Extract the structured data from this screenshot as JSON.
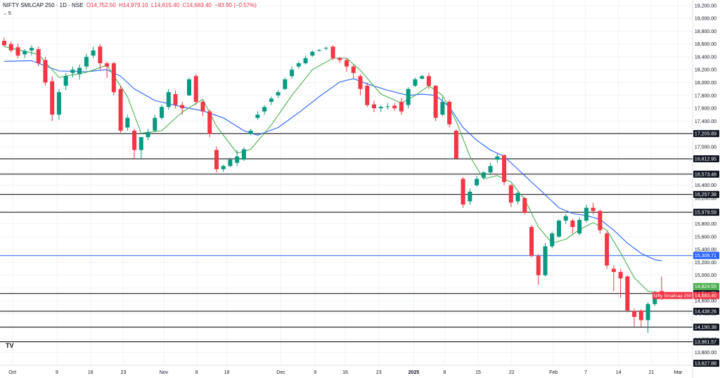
{
  "header": {
    "symbol": "NIFTY SMLCAP 250 · 1D · NSE",
    "o_label": "O",
    "o_value": "14,752.50",
    "h_label": "H",
    "h_value": "14,979.10",
    "l_label": "L",
    "l_value": "14,615.40",
    "c_label": "C",
    "c_value": "14,683.40",
    "change": "−83.90 (−0.57%)",
    "indicator": "5"
  },
  "logo_text": "TV",
  "colors": {
    "up": "#089981",
    "down": "#f23645",
    "ema_fast": "#4caf50",
    "ema_slow": "#2962ff",
    "level": "#000000",
    "blue_level": "#2962ff"
  },
  "chart_data": {
    "type": "candlestick",
    "title": "",
    "xlabel": "",
    "ylabel": "",
    "ylim": [
      13530,
      19220
    ],
    "y_ticks": [
      13800,
      14000,
      14200,
      14400,
      14600,
      14800,
      15000,
      15200,
      15400,
      15600,
      15800,
      16000,
      16200,
      16400,
      16600,
      16800,
      17000,
      17200,
      17400,
      17600,
      17800,
      18000,
      18200,
      18400,
      18600,
      18800,
      19000,
      19200
    ],
    "x_ticks": [
      "Oct",
      "9",
      "16",
      "23",
      "Nov",
      "8",
      "18",
      "Dec",
      "9",
      "16",
      "23",
      "2025",
      "8",
      "15",
      "22",
      "Feb",
      "7",
      "14",
      "21",
      "Mar"
    ],
    "candles": [
      {
        "o": 18650,
        "h": 18700,
        "l": 18560,
        "c": 18580
      },
      {
        "o": 18600,
        "h": 18640,
        "l": 18470,
        "c": 18500
      },
      {
        "o": 18550,
        "h": 18610,
        "l": 18380,
        "c": 18420
      },
      {
        "o": 18440,
        "h": 18520,
        "l": 18380,
        "c": 18490
      },
      {
        "o": 18500,
        "h": 18580,
        "l": 18420,
        "c": 18540
      },
      {
        "o": 18520,
        "h": 18560,
        "l": 18250,
        "c": 18300
      },
      {
        "o": 18350,
        "h": 18400,
        "l": 17950,
        "c": 18000
      },
      {
        "o": 18020,
        "h": 18100,
        "l": 17400,
        "c": 17500
      },
      {
        "o": 17500,
        "h": 17900,
        "l": 17420,
        "c": 17850
      },
      {
        "o": 17950,
        "h": 18150,
        "l": 17880,
        "c": 18100
      },
      {
        "o": 18150,
        "h": 18250,
        "l": 18080,
        "c": 18200
      },
      {
        "o": 18130,
        "h": 18280,
        "l": 18050,
        "c": 18230
      },
      {
        "o": 18250,
        "h": 18450,
        "l": 18200,
        "c": 18400
      },
      {
        "o": 18420,
        "h": 18560,
        "l": 18380,
        "c": 18500
      },
      {
        "o": 18560,
        "h": 18600,
        "l": 18200,
        "c": 18300
      },
      {
        "o": 18300,
        "h": 18330,
        "l": 18070,
        "c": 18250
      },
      {
        "o": 18300,
        "h": 18320,
        "l": 17800,
        "c": 17850
      },
      {
        "o": 17900,
        "h": 17950,
        "l": 17220,
        "c": 17250
      },
      {
        "o": 17300,
        "h": 17500,
        "l": 17250,
        "c": 17450
      },
      {
        "o": 17250,
        "h": 17280,
        "l": 16820,
        "c": 16950
      },
      {
        "o": 16950,
        "h": 17100,
        "l": 16820,
        "c": 17150
      },
      {
        "o": 17150,
        "h": 17280,
        "l": 17100,
        "c": 17230
      },
      {
        "o": 17250,
        "h": 17500,
        "l": 17230,
        "c": 17450
      },
      {
        "o": 17450,
        "h": 17650,
        "l": 17420,
        "c": 17620
      },
      {
        "o": 17620,
        "h": 17900,
        "l": 17580,
        "c": 17850
      },
      {
        "o": 17820,
        "h": 17880,
        "l": 17600,
        "c": 17650
      },
      {
        "o": 17650,
        "h": 17700,
        "l": 17500,
        "c": 17600
      },
      {
        "o": 17800,
        "h": 18080,
        "l": 17790,
        "c": 18050
      },
      {
        "o": 18100,
        "h": 18130,
        "l": 17650,
        "c": 17700
      },
      {
        "o": 17700,
        "h": 17720,
        "l": 17480,
        "c": 17550
      },
      {
        "o": 17550,
        "h": 17580,
        "l": 17150,
        "c": 17200
      },
      {
        "o": 16950,
        "h": 17000,
        "l": 16600,
        "c": 16650
      },
      {
        "o": 16650,
        "h": 16720,
        "l": 16610,
        "c": 16700
      },
      {
        "o": 16700,
        "h": 16830,
        "l": 16680,
        "c": 16800
      },
      {
        "o": 16750,
        "h": 16950,
        "l": 16700,
        "c": 16850
      },
      {
        "o": 16800,
        "h": 16990,
        "l": 16780,
        "c": 16960
      },
      {
        "o": 17200,
        "h": 17280,
        "l": 17180,
        "c": 17250
      },
      {
        "o": 17450,
        "h": 17550,
        "l": 17420,
        "c": 17500
      },
      {
        "o": 17550,
        "h": 17650,
        "l": 17500,
        "c": 17620
      },
      {
        "o": 17700,
        "h": 17780,
        "l": 17650,
        "c": 17750
      },
      {
        "o": 17800,
        "h": 17880,
        "l": 17760,
        "c": 17850
      },
      {
        "o": 17900,
        "h": 18080,
        "l": 17880,
        "c": 18050
      },
      {
        "o": 18100,
        "h": 18250,
        "l": 18060,
        "c": 18200
      },
      {
        "o": 18250,
        "h": 18330,
        "l": 18220,
        "c": 18300
      },
      {
        "o": 18300,
        "h": 18420,
        "l": 18280,
        "c": 18380
      },
      {
        "o": 18420,
        "h": 18500,
        "l": 18400,
        "c": 18480
      },
      {
        "o": 18500,
        "h": 18520,
        "l": 18480,
        "c": 18505
      },
      {
        "o": 18530,
        "h": 18560,
        "l": 18500,
        "c": 18540
      },
      {
        "o": 18560,
        "h": 18580,
        "l": 18350,
        "c": 18380
      },
      {
        "o": 18380,
        "h": 18400,
        "l": 18300,
        "c": 18350
      },
      {
        "o": 18350,
        "h": 18380,
        "l": 18170,
        "c": 18250
      },
      {
        "o": 18250,
        "h": 18280,
        "l": 18060,
        "c": 18150
      },
      {
        "o": 18100,
        "h": 18130,
        "l": 17800,
        "c": 17900
      },
      {
        "o": 17950,
        "h": 18000,
        "l": 17620,
        "c": 17650
      },
      {
        "o": 17660,
        "h": 17720,
        "l": 17540,
        "c": 17600
      },
      {
        "o": 17600,
        "h": 17650,
        "l": 17540,
        "c": 17620
      },
      {
        "o": 17620,
        "h": 17680,
        "l": 17580,
        "c": 17630
      },
      {
        "o": 17640,
        "h": 17680,
        "l": 17560,
        "c": 17600
      },
      {
        "o": 17700,
        "h": 17760,
        "l": 17500,
        "c": 17550
      },
      {
        "o": 17650,
        "h": 17930,
        "l": 17600,
        "c": 17900
      },
      {
        "o": 17950,
        "h": 18080,
        "l": 17930,
        "c": 18050
      },
      {
        "o": 18060,
        "h": 18120,
        "l": 18050,
        "c": 18100
      },
      {
        "o": 18100,
        "h": 18150,
        "l": 17900,
        "c": 17950
      },
      {
        "o": 17950,
        "h": 17960,
        "l": 17400,
        "c": 17450
      },
      {
        "o": 17500,
        "h": 17780,
        "l": 17480,
        "c": 17700
      },
      {
        "o": 17700,
        "h": 17730,
        "l": 17300,
        "c": 17350
      },
      {
        "o": 17250,
        "h": 17270,
        "l": 16800,
        "c": 16820
      },
      {
        "o": 16500,
        "h": 16530,
        "l": 16050,
        "c": 16100
      },
      {
        "o": 16150,
        "h": 16350,
        "l": 16100,
        "c": 16300
      },
      {
        "o": 16400,
        "h": 16550,
        "l": 16380,
        "c": 16500
      },
      {
        "o": 16520,
        "h": 16620,
        "l": 16500,
        "c": 16600
      },
      {
        "o": 16600,
        "h": 16750,
        "l": 16560,
        "c": 16700
      },
      {
        "o": 16800,
        "h": 16890,
        "l": 16750,
        "c": 16850
      },
      {
        "o": 16870,
        "h": 16880,
        "l": 16400,
        "c": 16450
      },
      {
        "o": 16400,
        "h": 16420,
        "l": 16060,
        "c": 16130
      },
      {
        "o": 16150,
        "h": 16300,
        "l": 16100,
        "c": 16280
      },
      {
        "o": 16200,
        "h": 16220,
        "l": 15950,
        "c": 15970
      },
      {
        "o": 15750,
        "h": 15780,
        "l": 15280,
        "c": 15300
      },
      {
        "o": 15300,
        "h": 15330,
        "l": 14850,
        "c": 15000
      },
      {
        "o": 15000,
        "h": 15500,
        "l": 14980,
        "c": 15450
      },
      {
        "o": 15450,
        "h": 15680,
        "l": 15420,
        "c": 15650
      },
      {
        "o": 15600,
        "h": 15870,
        "l": 15580,
        "c": 15850
      },
      {
        "o": 15850,
        "h": 15950,
        "l": 15800,
        "c": 15920
      },
      {
        "o": 15850,
        "h": 15880,
        "l": 15650,
        "c": 15750
      },
      {
        "o": 15650,
        "h": 15900,
        "l": 15620,
        "c": 15860
      },
      {
        "o": 15850,
        "h": 16100,
        "l": 15820,
        "c": 16050
      },
      {
        "o": 16050,
        "h": 16130,
        "l": 15950,
        "c": 16000
      },
      {
        "o": 16000,
        "h": 16020,
        "l": 15650,
        "c": 15700
      },
      {
        "o": 15650,
        "h": 15680,
        "l": 15100,
        "c": 15150
      },
      {
        "o": 15100,
        "h": 15150,
        "l": 14750,
        "c": 15050
      },
      {
        "o": 15050,
        "h": 15100,
        "l": 14650,
        "c": 14950
      },
      {
        "o": 14980,
        "h": 15000,
        "l": 14420,
        "c": 14450
      },
      {
        "o": 14440,
        "h": 14480,
        "l": 14200,
        "c": 14350
      },
      {
        "o": 14450,
        "h": 14470,
        "l": 14200,
        "c": 14300
      },
      {
        "o": 14300,
        "h": 14580,
        "l": 14100,
        "c": 14550
      },
      {
        "o": 14550,
        "h": 14760,
        "l": 14520,
        "c": 14740
      },
      {
        "o": 14752.5,
        "h": 14979.1,
        "l": 14615.4,
        "c": 14683.4
      }
    ],
    "ema_fast_name": "",
    "ema_fast": [
      [
        0,
        18560
      ],
      [
        5,
        18440
      ],
      [
        8,
        18080
      ],
      [
        12,
        18160
      ],
      [
        15,
        18270
      ],
      [
        18,
        17780
      ],
      [
        20,
        17210
      ],
      [
        23,
        17250
      ],
      [
        26,
        17540
      ],
      [
        29,
        17740
      ],
      [
        31,
        17320
      ],
      [
        34,
        16900
      ],
      [
        36,
        16960
      ],
      [
        39,
        17340
      ],
      [
        42,
        17800
      ],
      [
        45,
        18200
      ],
      [
        48,
        18380
      ],
      [
        50,
        18380
      ],
      [
        52,
        18190
      ],
      [
        55,
        17820
      ],
      [
        58,
        17680
      ],
      [
        60,
        17800
      ],
      [
        62,
        17950
      ],
      [
        64,
        17800
      ],
      [
        66,
        17400
      ],
      [
        68,
        16850
      ],
      [
        70,
        16500
      ],
      [
        72,
        16550
      ],
      [
        74,
        16450
      ],
      [
        76,
        16180
      ],
      [
        78,
        15750
      ],
      [
        80,
        15500
      ],
      [
        82,
        15560
      ],
      [
        84,
        15710
      ],
      [
        86,
        15820
      ],
      [
        88,
        15700
      ],
      [
        90,
        15350
      ],
      [
        92,
        14960
      ],
      [
        94,
        14750
      ],
      [
        97,
        14690
      ]
    ],
    "ema_slow_name": "",
    "ema_slow": [
      [
        0,
        18330
      ],
      [
        4,
        18340
      ],
      [
        8,
        18180
      ],
      [
        12,
        18170
      ],
      [
        15,
        18200
      ],
      [
        17,
        18100
      ],
      [
        19,
        17900
      ],
      [
        22,
        17720
      ],
      [
        26,
        17620
      ],
      [
        29,
        17560
      ],
      [
        32,
        17450
      ],
      [
        35,
        17250
      ],
      [
        37,
        17180
      ],
      [
        40,
        17300
      ],
      [
        43,
        17530
      ],
      [
        46,
        17780
      ],
      [
        49,
        18010
      ],
      [
        51,
        18060
      ],
      [
        53,
        17980
      ],
      [
        56,
        17880
      ],
      [
        59,
        17800
      ],
      [
        61,
        17820
      ],
      [
        63,
        17800
      ],
      [
        65,
        17620
      ],
      [
        67,
        17300
      ],
      [
        69,
        17100
      ],
      [
        71,
        16950
      ],
      [
        73,
        16850
      ],
      [
        75,
        16650
      ],
      [
        77,
        16450
      ],
      [
        79,
        16250
      ],
      [
        81,
        16050
      ],
      [
        83,
        15960
      ],
      [
        85,
        15930
      ],
      [
        87,
        15870
      ],
      [
        89,
        15700
      ],
      [
        91,
        15500
      ],
      [
        93,
        15340
      ],
      [
        95,
        15240
      ],
      [
        96,
        15225
      ]
    ],
    "levels": [
      {
        "value": 17205.89,
        "label": "17,205.89"
      },
      {
        "value": 16812.95,
        "label": "16,812.95"
      },
      {
        "value": 16573.48,
        "label": "16,573.48"
      },
      {
        "value": 16257.38,
        "label": "16,257.38"
      },
      {
        "value": 15979.59,
        "label": "15,979.59"
      },
      {
        "value": 14714.75,
        "label": "14,714.75"
      },
      {
        "value": 14438.26,
        "label": "14,438.26"
      },
      {
        "value": 14190.38,
        "label": "14,190.38"
      },
      {
        "value": 13961.57,
        "label": "13,961.57"
      }
    ],
    "blue_level": {
      "value": 15305.75,
      "label": "15,305.75"
    },
    "badges": [
      {
        "label": "15,309.71",
        "value": 15309.71,
        "color": "#2962ff",
        "text": "#ffffff"
      },
      {
        "label": "14,824.55",
        "value": 14824.55,
        "color": "#4caf50",
        "text": "#ffffff"
      },
      {
        "label": "13,627.88",
        "value": 13627.88,
        "color": "#131722",
        "text": "#ffffff"
      }
    ],
    "price_label": {
      "name": "Nifty Smallcap 250",
      "value": "14,683.40",
      "y": 14683.4,
      "color": "#f23645"
    }
  }
}
